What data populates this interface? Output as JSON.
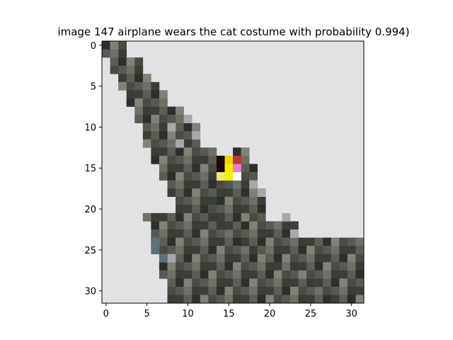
{
  "chart_data": {
    "type": "heatmap",
    "title": "image 147  airplane wears the cat costume with probability 0.994)",
    "xlabel": "",
    "ylabel": "",
    "xlim": [
      -0.5,
      31.5
    ],
    "ylim": [
      31.5,
      -0.5
    ],
    "grid": false,
    "legend": "none",
    "x_ticks": [
      0,
      5,
      10,
      15,
      20,
      25,
      30
    ],
    "y_ticks": [
      0,
      5,
      10,
      15,
      20,
      25,
      30
    ],
    "background_color": "#e2e2e4",
    "image_size": [
      32,
      32
    ],
    "patch": {
      "rows": [
        14,
        15,
        16
      ],
      "cols": [
        14,
        15,
        16
      ],
      "colors": [
        [
          "#1e0a0a",
          "#f0d000",
          "#b83a3a"
        ],
        [
          "#140808",
          "#f8e800",
          "#ee7ad2"
        ],
        [
          "#ecec6a",
          "#f8f400",
          "#ffffff"
        ]
      ]
    }
  }
}
